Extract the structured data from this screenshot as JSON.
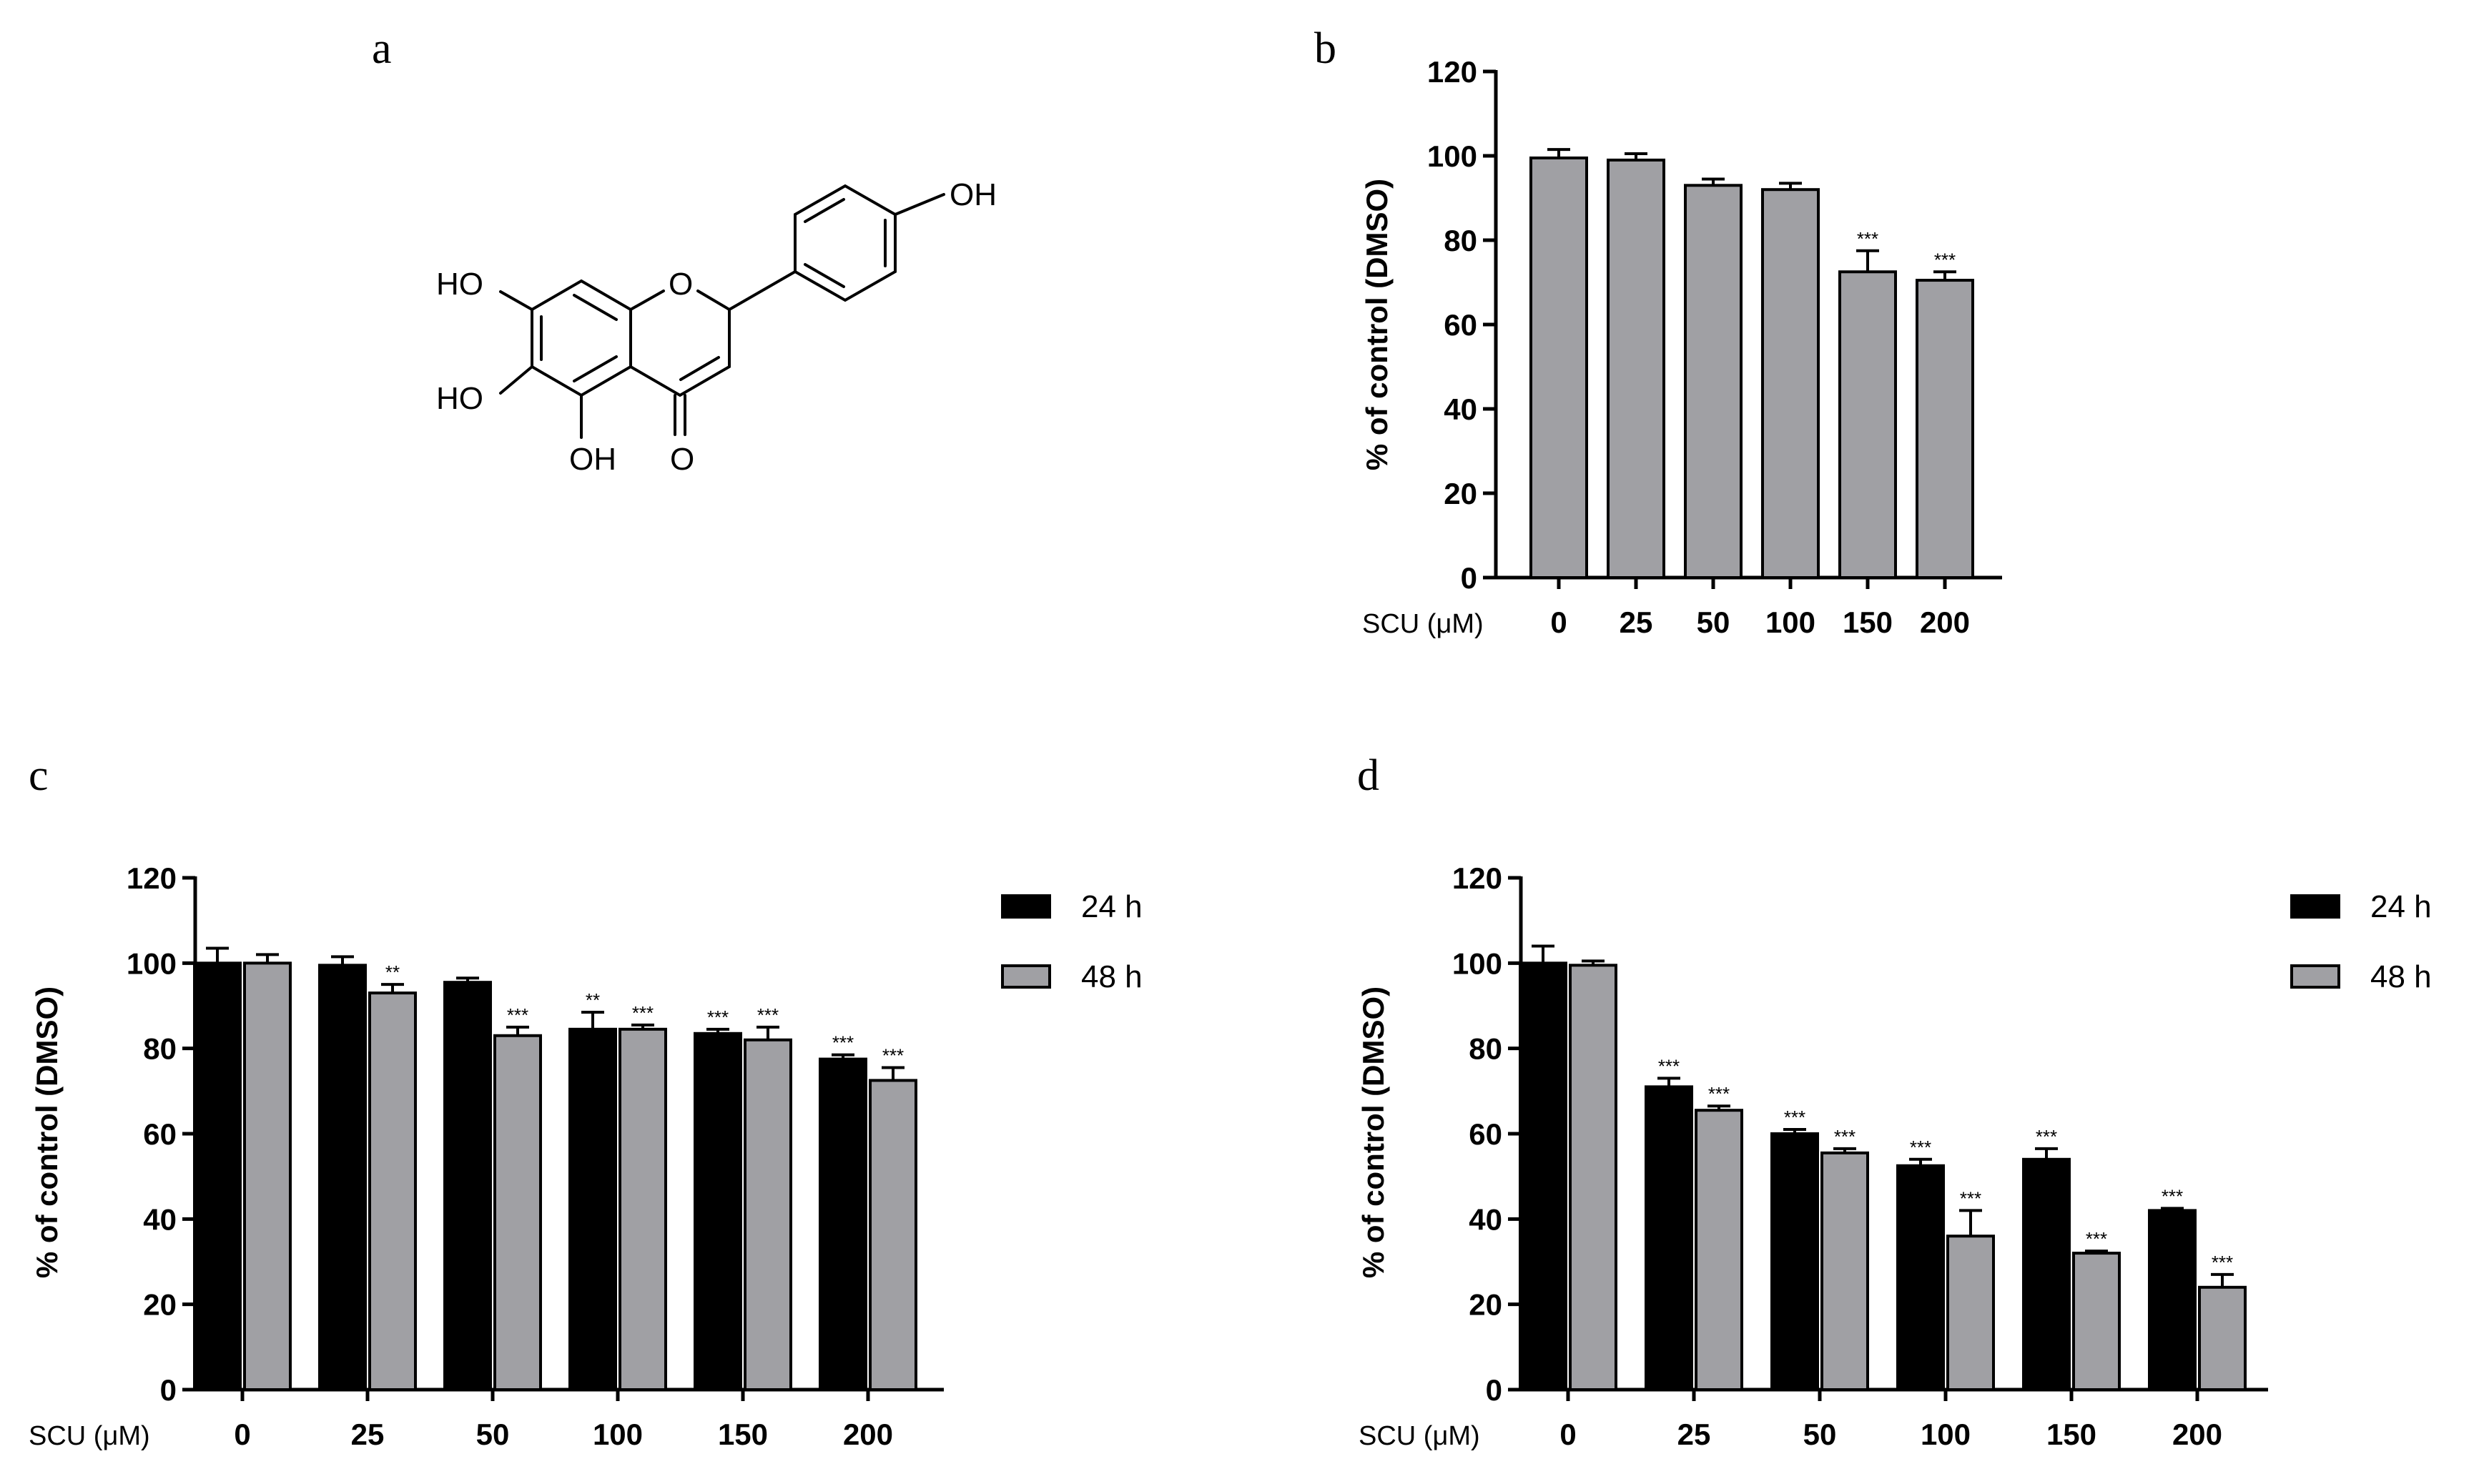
{
  "panels": {
    "a": "a",
    "b": "b",
    "c": "c",
    "d": "d"
  },
  "structure_labels": [
    "OH",
    "HO",
    "HO",
    "OH",
    "O",
    "O"
  ],
  "chart_data": [
    {
      "id": "b",
      "type": "bar",
      "ylabel": "% of control (DMSO)",
      "xtitle": "SCU (μM)",
      "categories": [
        "0",
        "25",
        "50",
        "100",
        "150",
        "200"
      ],
      "ylim": [
        0,
        120
      ],
      "yticks": [
        0,
        20,
        40,
        60,
        80,
        100,
        120
      ],
      "series": [
        {
          "values": [
            99.5,
            99,
            93,
            92,
            72.5,
            70.5
          ],
          "errors": [
            2,
            1.5,
            1.5,
            1.5,
            5,
            2
          ],
          "sig": [
            "",
            "",
            "",
            "",
            "***",
            "***"
          ],
          "color": "#a0a0a4"
        }
      ]
    },
    {
      "id": "c",
      "type": "bar",
      "ylabel": "% of control (DMSO)",
      "xtitle": "SCU (μM)",
      "categories": [
        "0",
        "25",
        "50",
        "100",
        "150",
        "200"
      ],
      "ylim": [
        0,
        120
      ],
      "yticks": [
        0,
        20,
        40,
        60,
        80,
        100,
        120
      ],
      "legend": "right",
      "series": [
        {
          "name": "24 h",
          "values": [
            100,
            99.5,
            95.5,
            84.5,
            83.5,
            77.5
          ],
          "errors": [
            3.5,
            2,
            1,
            4,
            1,
            1
          ],
          "sig": [
            "",
            "",
            "",
            "**",
            "***",
            "***"
          ],
          "color": "#000000"
        },
        {
          "name": "48 h",
          "values": [
            100,
            93,
            83,
            84.5,
            82,
            72.5
          ],
          "errors": [
            2,
            2,
            2,
            1,
            3,
            3
          ],
          "sig": [
            "",
            "**",
            "***",
            "***",
            "***",
            "***"
          ],
          "color": "#a0a0a4"
        }
      ]
    },
    {
      "id": "d",
      "type": "bar",
      "ylabel": "% of control (DMSO)",
      "xtitle": "SCU (μM)",
      "categories": [
        "0",
        "25",
        "50",
        "100",
        "150",
        "200"
      ],
      "ylim": [
        0,
        120
      ],
      "yticks": [
        0,
        20,
        40,
        60,
        80,
        100,
        120
      ],
      "legend": "right",
      "series": [
        {
          "name": "24 h",
          "values": [
            100,
            71,
            60,
            52.5,
            54,
            42
          ],
          "errors": [
            4,
            2,
            1,
            1.5,
            2.5,
            0.5
          ],
          "sig": [
            "",
            "***",
            "***",
            "***",
            "***",
            "***"
          ],
          "color": "#000000"
        },
        {
          "name": "48 h",
          "values": [
            99.5,
            65.5,
            55.5,
            36,
            32,
            24
          ],
          "errors": [
            1,
            1,
            1,
            6,
            0.5,
            3
          ],
          "sig": [
            "",
            "***",
            "***",
            "***",
            "***",
            "***"
          ],
          "color": "#a0a0a4"
        }
      ]
    }
  ]
}
